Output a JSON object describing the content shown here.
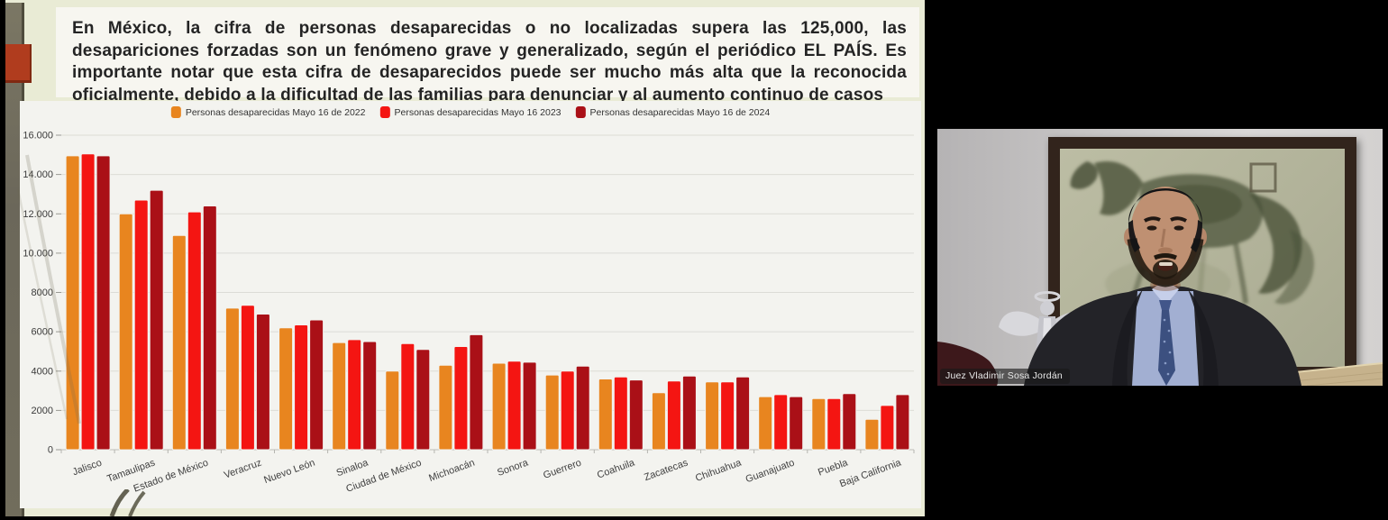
{
  "meeting": {
    "participant_video": {
      "name_label": "Juez Vladimir Sosa Jordán"
    }
  },
  "slide": {
    "title": "En México, la cifra de personas desaparecidas o no localizadas supera las 125,000,  las desapariciones forzadas son un fenómeno grave y generalizado, según el periódico EL PAÍS. Es importante notar que esta cifra de desaparecidos puede ser mucho más alta que la reconocida oficialmente, debido a la dificultad de las familias para denunciar y al aumento continuo de casos"
  },
  "chart_data": {
    "type": "bar",
    "title": "",
    "xlabel": "",
    "ylabel": "",
    "categories": [
      "Jalisco",
      "Tamaulipas",
      "Estado de México",
      "Veracruz",
      "Nuevo León",
      "Sinaloa",
      "Ciudad de México",
      "Michoacán",
      "Sonora",
      "Guerrero",
      "Coahuila",
      "Zacatecas",
      "Chihuahua",
      "Guanajuato",
      "Puebla",
      "Baja California"
    ],
    "series": [
      {
        "name": "Personas desaparecidas Mayo 16 de 2022",
        "color": "#E8851F",
        "values": [
          14950,
          12000,
          10900,
          7200,
          6200,
          5450,
          4000,
          4300,
          4400,
          3800,
          3600,
          2900,
          3450,
          2700,
          2600,
          1550
        ]
      },
      {
        "name": "Personas desaparecidas Mayo 16  2023",
        "color": "#F41512",
        "values": [
          15050,
          12700,
          12100,
          7350,
          6350,
          5600,
          5400,
          5250,
          4500,
          4000,
          3700,
          3500,
          3450,
          2800,
          2600,
          2250
        ]
      },
      {
        "name": "Personas desaparecidas Mayo 16 de 2024",
        "color": "#AA1017",
        "values": [
          14950,
          13200,
          12400,
          6900,
          6600,
          5500,
          5100,
          5850,
          4450,
          4250,
          3550,
          3750,
          3700,
          2700,
          2850,
          2800
        ]
      }
    ],
    "ylim": [
      0,
      16000
    ],
    "yticks": [
      {
        "value": 0,
        "label": "0"
      },
      {
        "value": 2000,
        "label": "2000"
      },
      {
        "value": 4000,
        "label": "4000"
      },
      {
        "value": 6000,
        "label": "6000"
      },
      {
        "value": 8000,
        "label": "8000"
      },
      {
        "value": 10000,
        "label": "10.000"
      },
      {
        "value": 12000,
        "label": "12.000"
      },
      {
        "value": 14000,
        "label": "14.000"
      },
      {
        "value": 16000,
        "label": "16.000"
      }
    ],
    "grid": true,
    "legend_position": "top-center"
  },
  "colors": {
    "slide_bg": "#E9EBD5",
    "chart_panel_bg": "#F3F3EF",
    "accent_red_square": "#B03C1E",
    "sidebar_olive": "#6F6B5A"
  }
}
